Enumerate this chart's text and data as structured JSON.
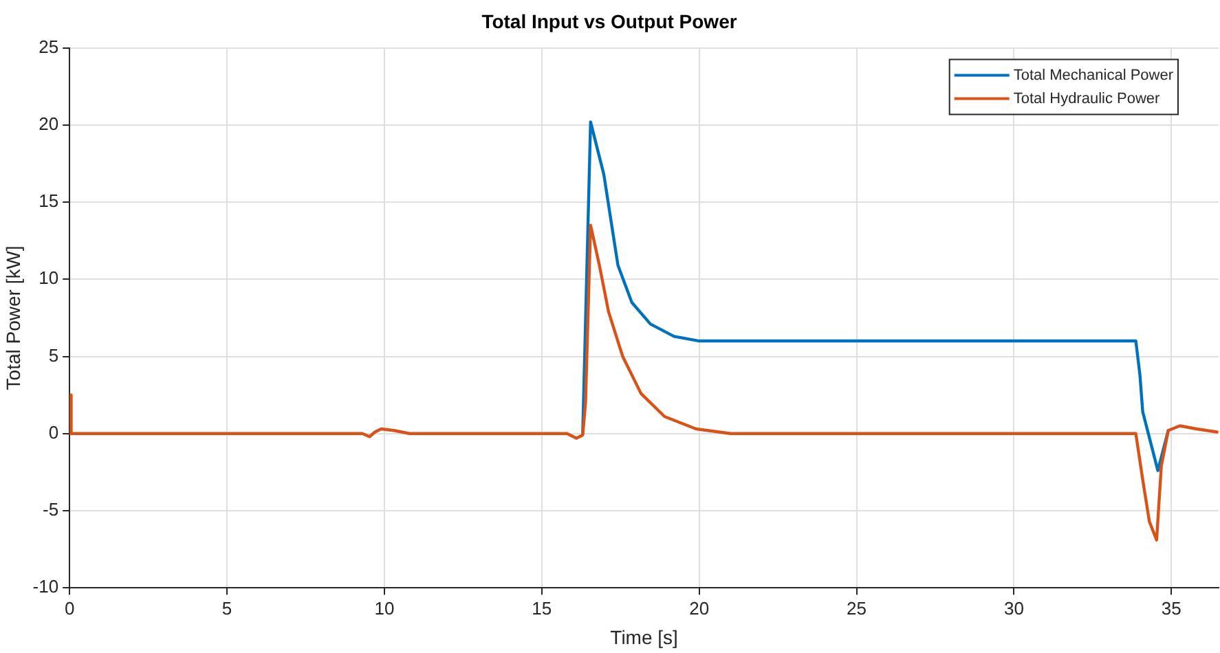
{
  "chart_data": {
    "type": "line",
    "title": "Total Input vs Output Power",
    "xlabel": "Time [s]",
    "ylabel": "Total Power [kW]",
    "xlim": [
      0,
      36.5
    ],
    "xticks": [
      0,
      5,
      10,
      15,
      20,
      25,
      30,
      35
    ],
    "ylim": [
      -10,
      25
    ],
    "yticks": [
      -10,
      -5,
      0,
      5,
      10,
      15,
      20,
      25
    ],
    "grid": true,
    "legend": "top right",
    "marker": "none",
    "line_style": "solid",
    "series": [
      {
        "name": "Total Mechanical Power",
        "color": "#0072bd",
        "x": [
          16.3,
          16.55,
          16.97,
          17.42,
          17.86,
          18.45,
          19.2,
          20,
          22,
          30,
          33.87,
          34.0,
          34.09,
          34.57,
          34.9
        ],
        "values": [
          0,
          20.2,
          16.8,
          10.9,
          8.5,
          7.1,
          6.3,
          6.0,
          6.0,
          6.0,
          6.0,
          3.8,
          1.4,
          -2.4,
          0.2
        ]
      },
      {
        "name": "Total Hydraulic Power",
        "color": "#d95319",
        "x": [
          0,
          0.02,
          0.05,
          9.3,
          9.53,
          9.7,
          9.9,
          10.3,
          10.8,
          15.8,
          16.1,
          16.3,
          16.39,
          16.55,
          16.83,
          17.12,
          17.57,
          18.15,
          18.9,
          19.9,
          21,
          30,
          33.87,
          34.09,
          34.3,
          34.53,
          34.68,
          34.9,
          35.27,
          35.8,
          36.45
        ],
        "values": [
          0,
          2.5,
          0,
          0,
          -0.2,
          0.1,
          0.3,
          0.2,
          0,
          0,
          -0.3,
          -0.1,
          2,
          13.5,
          10.9,
          7.9,
          5.0,
          2.6,
          1.1,
          0.3,
          0,
          0,
          0,
          -3.0,
          -5.7,
          -6.9,
          -2.1,
          0.2,
          0.5,
          0.3,
          0.1
        ]
      }
    ]
  }
}
